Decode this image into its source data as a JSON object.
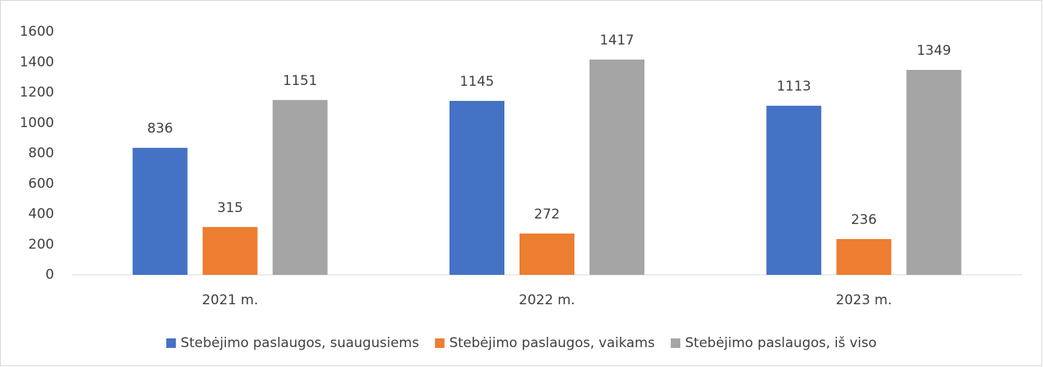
{
  "chart_data": {
    "type": "bar",
    "categories": [
      "2021 m.",
      "2022 m.",
      "2023 m."
    ],
    "series": [
      {
        "name": "Stebėjimo paslaugos, suaugusiems",
        "color": "#4472c4",
        "values": [
          836,
          1145,
          1113
        ]
      },
      {
        "name": "Stebėjimo paslaugos, vaikams",
        "color": "#ed7d31",
        "values": [
          315,
          272,
          236
        ]
      },
      {
        "name": "Stebėjimo paslaugos, iš viso",
        "color": "#a5a5a5",
        "values": [
          1151,
          1417,
          1349
        ]
      }
    ],
    "ylim": [
      0,
      1600
    ],
    "yticks": [
      0,
      200,
      400,
      600,
      800,
      1000,
      1200,
      1400,
      1600
    ],
    "grid": false,
    "legend": "bottom"
  }
}
